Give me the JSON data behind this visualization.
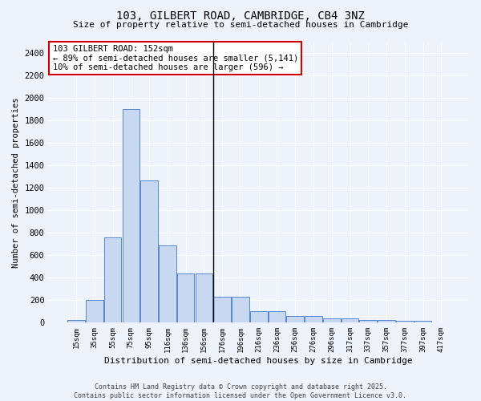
{
  "title": "103, GILBERT ROAD, CAMBRIDGE, CB4 3NZ",
  "subtitle": "Size of property relative to semi-detached houses in Cambridge",
  "xlabel": "Distribution of semi-detached houses by size in Cambridge",
  "ylabel": "Number of semi-detached properties",
  "categories": [
    "15sqm",
    "35sqm",
    "55sqm",
    "75sqm",
    "95sqm",
    "116sqm",
    "136sqm",
    "156sqm",
    "176sqm",
    "196sqm",
    "216sqm",
    "236sqm",
    "256sqm",
    "276sqm",
    "296sqm",
    "317sqm",
    "337sqm",
    "357sqm",
    "377sqm",
    "397sqm",
    "417sqm"
  ],
  "values": [
    25,
    200,
    760,
    1900,
    1270,
    690,
    435,
    435,
    230,
    230,
    105,
    105,
    60,
    60,
    35,
    35,
    25,
    25,
    15,
    15,
    5
  ],
  "bar_color": "#c8d8f0",
  "bar_edge_color": "#5588cc",
  "background_color": "#eef2fb",
  "grid_color": "#ffffff",
  "vline_index": 7,
  "vline_color": "#000000",
  "annotation_text": "103 GILBERT ROAD: 152sqm\n← 89% of semi-detached houses are smaller (5,141)\n10% of semi-detached houses are larger (596) →",
  "annotation_box_color": "#ffffff",
  "annotation_box_edge": "#cc0000",
  "ylim": [
    0,
    2500
  ],
  "yticks": [
    0,
    200,
    400,
    600,
    800,
    1000,
    1200,
    1400,
    1600,
    1800,
    2000,
    2200,
    2400
  ],
  "footer_line1": "Contains HM Land Registry data © Crown copyright and database right 2025.",
  "footer_line2": "Contains public sector information licensed under the Open Government Licence v3.0."
}
